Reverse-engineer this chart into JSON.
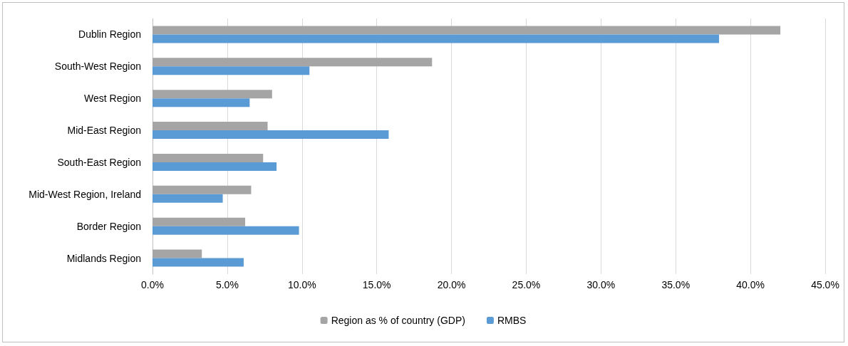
{
  "chart_data": {
    "type": "bar",
    "orientation": "horizontal",
    "categories": [
      "Dublin Region",
      "South-West Region",
      "West Region",
      "Mid-East Region",
      "South-East Region",
      "Mid-West Region, Ireland",
      "Border Region",
      "Midlands Region"
    ],
    "series": [
      {
        "name": "Region as % of country (GDP)",
        "color": "#a5a5a5",
        "values": [
          42.0,
          18.7,
          8.0,
          7.7,
          7.4,
          6.6,
          6.2,
          3.3
        ]
      },
      {
        "name": "RMBS",
        "color": "#5b9bd5",
        "values": [
          37.9,
          10.5,
          6.5,
          15.8,
          8.3,
          4.7,
          9.8,
          6.1
        ]
      }
    ],
    "xlim": [
      0,
      45
    ],
    "xticks": [
      {
        "value": 0,
        "label": "0.0%"
      },
      {
        "value": 5,
        "label": "5.0%"
      },
      {
        "value": 10,
        "label": "10.0%"
      },
      {
        "value": 15,
        "label": "15.0%"
      },
      {
        "value": 20,
        "label": "20.0%"
      },
      {
        "value": 25,
        "label": "25.0%"
      },
      {
        "value": 30,
        "label": "30.0%"
      },
      {
        "value": 35,
        "label": "35.0%"
      },
      {
        "value": 40,
        "label": "40.0%"
      },
      {
        "value": 45,
        "label": "45.0%"
      }
    ],
    "grid": "x",
    "legend": "bottom"
  }
}
